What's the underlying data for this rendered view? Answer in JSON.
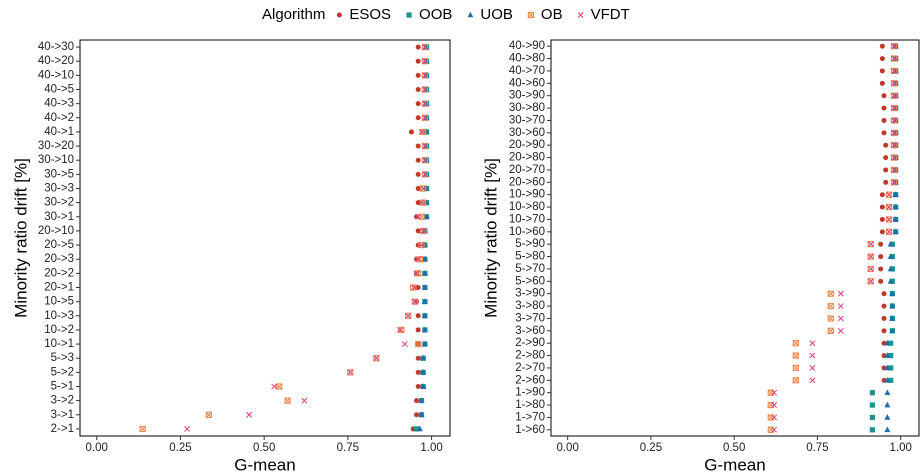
{
  "legend_title": "Algorithm",
  "chart_data": [
    {
      "type": "dot",
      "x_label": "G-mean",
      "y_label": "Minority ratio drift [%]",
      "categories": [
        "40->30",
        "40->20",
        "40->10",
        "40->5",
        "40->3",
        "40->2",
        "40->1",
        "30->20",
        "30->10",
        "30->5",
        "30->3",
        "30->2",
        "30->1",
        "20->10",
        "20->5",
        "20->3",
        "20->2",
        "20->1",
        "10->5",
        "10->3",
        "10->2",
        "10->1",
        "5->3",
        "5->2",
        "5->1",
        "3->2",
        "3->1",
        "2->1"
      ],
      "xlim": [
        -0.05,
        1.055
      ],
      "xticks": [
        {
          "value": 0,
          "label": "0.00"
        },
        {
          "value": 0.25,
          "label": "0.25"
        },
        {
          "value": 0.5,
          "label": "0.50"
        },
        {
          "value": 0.75,
          "label": "0.75"
        },
        {
          "value": 1,
          "label": "1.00"
        }
      ],
      "series": [
        {
          "name": "ESOS",
          "color": "#c0392b",
          "marker": "circle",
          "values": [
            0.96,
            0.96,
            0.96,
            0.96,
            0.96,
            0.96,
            0.94,
            0.96,
            0.96,
            0.96,
            0.96,
            0.96,
            0.955,
            0.96,
            0.96,
            0.955,
            0.955,
            0.96,
            0.955,
            0.96,
            0.96,
            0.96,
            0.96,
            0.96,
            0.96,
            0.955,
            0.955,
            0.945
          ]
        },
        {
          "name": "OOB",
          "color": "#17968c",
          "marker": "square",
          "values": [
            0.985,
            0.985,
            0.985,
            0.985,
            0.985,
            0.985,
            0.985,
            0.985,
            0.985,
            0.985,
            0.985,
            0.985,
            0.985,
            0.98,
            0.98,
            0.98,
            0.98,
            0.98,
            0.98,
            0.98,
            0.98,
            0.98,
            0.975,
            0.975,
            0.975,
            0.97,
            0.97,
            0.955
          ]
        },
        {
          "name": "UOB",
          "color": "#1f6fb0",
          "marker": "triangle",
          "values": [
            0.985,
            0.985,
            0.985,
            0.985,
            0.985,
            0.985,
            0.985,
            0.985,
            0.985,
            0.985,
            0.985,
            0.985,
            0.985,
            0.98,
            0.98,
            0.98,
            0.98,
            0.98,
            0.98,
            0.98,
            0.98,
            0.98,
            0.975,
            0.975,
            0.975,
            0.97,
            0.97,
            0.965
          ]
        },
        {
          "name": "OB",
          "color": "#ee8a4e",
          "marker": "squarecross",
          "values": [
            0.98,
            0.98,
            0.98,
            0.98,
            0.98,
            0.98,
            0.975,
            0.98,
            0.98,
            0.98,
            0.975,
            0.975,
            0.97,
            0.975,
            0.97,
            0.965,
            0.96,
            0.945,
            0.95,
            0.93,
            0.91,
            0.96,
            0.835,
            0.757,
            0.545,
            0.57,
            0.335,
            0.137
          ]
        },
        {
          "name": "VFDT",
          "color": "#de4a86",
          "marker": "cross",
          "values": [
            0.98,
            0.98,
            0.98,
            0.98,
            0.98,
            0.98,
            0.97,
            0.98,
            0.98,
            0.98,
            0.975,
            0.97,
            0.96,
            0.975,
            0.97,
            0.96,
            0.955,
            0.95,
            0.95,
            0.93,
            0.905,
            0.92,
            0.835,
            0.757,
            0.53,
            0.62,
            0.455,
            0.27
          ]
        }
      ]
    },
    {
      "type": "dot",
      "x_label": "G-mean",
      "y_label": "Minority ratio drift [%]",
      "categories": [
        "40->90",
        "40->80",
        "40->70",
        "40->60",
        "30->90",
        "30->80",
        "30->70",
        "30->60",
        "20->90",
        "20->80",
        "20->70",
        "20->60",
        "10->90",
        "10->80",
        "10->70",
        "10->60",
        "5->90",
        "5->80",
        "5->70",
        "5->60",
        "3->90",
        "3->80",
        "3->70",
        "3->60",
        "2->90",
        "2->80",
        "2->70",
        "2->60",
        "1->90",
        "1->80",
        "1->70",
        "1->60"
      ],
      "xlim": [
        -0.05,
        1.055
      ],
      "xticks": [
        {
          "value": 0,
          "label": "0.00"
        },
        {
          "value": 0.25,
          "label": "0.25"
        },
        {
          "value": 0.5,
          "label": "0.50"
        },
        {
          "value": 0.75,
          "label": "0.75"
        },
        {
          "value": 1,
          "label": "1.00"
        }
      ],
      "series": [
        {
          "name": "ESOS",
          "color": "#c0392b",
          "marker": "circle",
          "values": [
            0.945,
            0.945,
            0.945,
            0.945,
            0.95,
            0.95,
            0.95,
            0.95,
            0.955,
            0.955,
            0.955,
            0.955,
            0.945,
            0.945,
            0.945,
            0.945,
            0.94,
            0.94,
            0.94,
            0.94,
            0.95,
            0.95,
            0.95,
            0.95,
            0.95,
            0.95,
            0.95,
            0.95,
            0.915,
            0.915,
            0.915,
            0.915
          ]
        },
        {
          "name": "OOB",
          "color": "#17968c",
          "marker": "square",
          "values": [
            0.985,
            0.985,
            0.985,
            0.985,
            0.985,
            0.985,
            0.985,
            0.985,
            0.985,
            0.985,
            0.985,
            0.985,
            0.985,
            0.985,
            0.985,
            0.985,
            0.975,
            0.975,
            0.975,
            0.975,
            0.975,
            0.975,
            0.975,
            0.975,
            0.97,
            0.97,
            0.97,
            0.97,
            0.915,
            0.915,
            0.915,
            0.915
          ]
        },
        {
          "name": "UOB",
          "color": "#1f6fb0",
          "marker": "triangle",
          "values": [
            0.985,
            0.985,
            0.985,
            0.985,
            0.985,
            0.985,
            0.985,
            0.985,
            0.985,
            0.985,
            0.985,
            0.985,
            0.985,
            0.985,
            0.985,
            0.985,
            0.97,
            0.97,
            0.97,
            0.97,
            0.975,
            0.975,
            0.975,
            0.975,
            0.96,
            0.96,
            0.96,
            0.96,
            0.96,
            0.96,
            0.96,
            0.96
          ]
        },
        {
          "name": "OB",
          "color": "#ee8a4e",
          "marker": "squarecross",
          "values": [
            0.98,
            0.98,
            0.98,
            0.98,
            0.98,
            0.98,
            0.98,
            0.98,
            0.98,
            0.98,
            0.98,
            0.98,
            0.965,
            0.965,
            0.965,
            0.965,
            0.91,
            0.91,
            0.91,
            0.91,
            0.79,
            0.79,
            0.79,
            0.79,
            0.685,
            0.685,
            0.685,
            0.685,
            0.61,
            0.61,
            0.61,
            0.61
          ]
        },
        {
          "name": "VFDT",
          "color": "#de4a86",
          "marker": "cross",
          "values": [
            0.98,
            0.98,
            0.98,
            0.98,
            0.98,
            0.98,
            0.98,
            0.98,
            0.98,
            0.98,
            0.98,
            0.98,
            0.965,
            0.965,
            0.965,
            0.965,
            0.91,
            0.91,
            0.91,
            0.91,
            0.82,
            0.82,
            0.82,
            0.82,
            0.735,
            0.735,
            0.735,
            0.735,
            0.62,
            0.62,
            0.62,
            0.62
          ]
        }
      ]
    }
  ]
}
